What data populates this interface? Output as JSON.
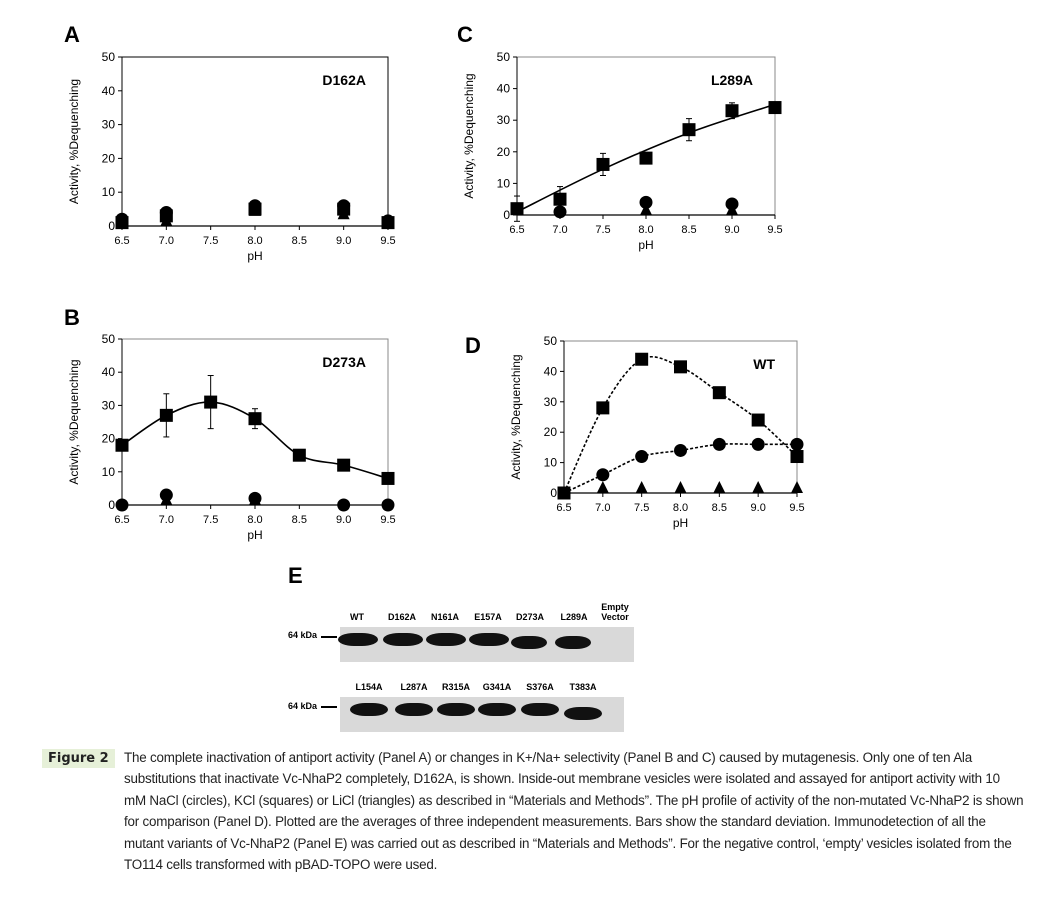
{
  "figure": {
    "label": "Figure 2",
    "caption": "The complete inactivation of antiport activity (Panel A) or changes in K+/Na+ selectivity (Panel B and C) caused by mutagenesis. Only one of ten Ala substitutions that inactivate Vc-NhaP2 completely, D162A, is shown.  Inside-out membrane vesicles were isolated and assayed for antiport activity with 10 mM NaCl (circles), KCl (squares) or LiCl (triangles) as described in “Materials and Methods”. The pH profile of activity of the non-mutated Vc-NhaP2 is shown for comparison (Panel D). Plotted are the averages of three independent measurements. Bars show the standard deviation. Immunodetection of all the mutant variants of Vc-NhaP2 (Panel E) was carried out as described in “Materials and Methods”. For the negative control, ‘empty’ vesicles isolated from the TO114 cells transformed with pBAD-TOPO were used."
  },
  "panel_letters": {
    "A": "A",
    "B": "B",
    "C": "C",
    "D": "D",
    "E": "E"
  },
  "chart_data": [
    {
      "panel": "A",
      "type": "scatter",
      "title": "D162A",
      "xlabel": "pH",
      "ylabel": "Activity, %Dequenching",
      "xlim": [
        6.5,
        9.5
      ],
      "ylim": [
        0,
        50
      ],
      "xticks": [
        "6.5",
        "7.0",
        "7.5",
        "8.0",
        "8.5",
        "9.0",
        "9.5"
      ],
      "yticks": [
        "0",
        "10",
        "20",
        "30",
        "40",
        "50"
      ],
      "series": [
        {
          "name": "NaCl",
          "marker": "circle",
          "line": "none",
          "x": [
            6.5,
            7.0,
            8.0,
            9.0,
            9.5
          ],
          "y": [
            2,
            4,
            6,
            6,
            1.5
          ]
        },
        {
          "name": "KCl",
          "marker": "square",
          "line": "none",
          "x": [
            6.5,
            7.0,
            8.0,
            9.0,
            9.5
          ],
          "y": [
            1,
            3,
            5,
            5,
            1
          ]
        },
        {
          "name": "LiCl",
          "marker": "triangle",
          "line": "none",
          "x": [
            7.0,
            8.0,
            9.0
          ],
          "y": [
            0,
            3,
            2
          ]
        }
      ]
    },
    {
      "panel": "B",
      "type": "line",
      "title": "D273A",
      "xlabel": "pH",
      "ylabel": "Activity, %Dequenching",
      "xlim": [
        6.5,
        9.5
      ],
      "ylim": [
        0,
        50
      ],
      "xticks": [
        "6.5",
        "7.0",
        "7.5",
        "8.0",
        "8.5",
        "9.0",
        "9.5"
      ],
      "yticks": [
        "0",
        "10",
        "20",
        "30",
        "40",
        "50"
      ],
      "series": [
        {
          "name": "KCl",
          "marker": "square",
          "line": "solid",
          "x": [
            6.5,
            7.0,
            7.5,
            8.0,
            8.5,
            9.0,
            9.5
          ],
          "y": [
            18,
            27,
            31,
            26,
            15,
            12,
            8
          ],
          "err": [
            0,
            6.5,
            8,
            3,
            0,
            0,
            0
          ]
        },
        {
          "name": "NaCl",
          "marker": "circle",
          "line": "none",
          "x": [
            6.5,
            7.0,
            8.0,
            9.0,
            9.5
          ],
          "y": [
            0,
            3,
            2,
            0,
            0
          ]
        },
        {
          "name": "LiCl",
          "marker": "triangle",
          "line": "none",
          "x": [
            7.0,
            8.0
          ],
          "y": [
            0,
            0
          ]
        }
      ]
    },
    {
      "panel": "C",
      "type": "line",
      "title": "L289A",
      "xlabel": "pH",
      "ylabel": "Activity, %Dequenching",
      "xlim": [
        6.5,
        9.5
      ],
      "ylim": [
        0,
        50
      ],
      "xticks": [
        "6.5",
        "7.0",
        "7.5",
        "8.0",
        "8.5",
        "9.0",
        "9.5"
      ],
      "yticks": [
        "0",
        "10",
        "20",
        "30",
        "40",
        "50"
      ],
      "series": [
        {
          "name": "KCl",
          "marker": "square",
          "line": "solid",
          "x": [
            6.5,
            7.0,
            7.5,
            8.0,
            8.5,
            9.0,
            9.5
          ],
          "y": [
            2,
            5,
            16,
            18,
            27,
            33,
            34
          ],
          "err": [
            4,
            4,
            3.5,
            0,
            3.5,
            2.5,
            0
          ],
          "fit": [
            [
              6.5,
              1
            ],
            [
              7.5,
              14.5
            ],
            [
              8.5,
              26
            ],
            [
              9.5,
              35
            ]
          ]
        },
        {
          "name": "NaCl",
          "marker": "circle",
          "line": "none",
          "x": [
            7.0,
            8.0,
            9.0
          ],
          "y": [
            1,
            4,
            3.5
          ]
        },
        {
          "name": "LiCl",
          "marker": "triangle",
          "line": "none",
          "x": [
            7.0,
            8.0,
            9.0
          ],
          "y": [
            0,
            0,
            0
          ]
        }
      ]
    },
    {
      "panel": "D",
      "type": "line",
      "title": "WT",
      "xlabel": "pH",
      "ylabel": "Activity, %Dequenching",
      "xlim": [
        6.5,
        9.5
      ],
      "ylim": [
        0,
        50
      ],
      "xticks": [
        "6.5",
        "7.0",
        "7.5",
        "8.0",
        "8.5",
        "9.0",
        "9.5"
      ],
      "yticks": [
        "0",
        "10",
        "20",
        "30",
        "40",
        "50"
      ],
      "series": [
        {
          "name": "KCl",
          "marker": "square",
          "line": "dashed",
          "x": [
            6.5,
            7.0,
            7.5,
            8.0,
            8.5,
            9.0,
            9.5
          ],
          "y": [
            0,
            28,
            44,
            41.5,
            33,
            24,
            12
          ]
        },
        {
          "name": "NaCl",
          "marker": "circle",
          "line": "dashed",
          "x": [
            6.5,
            7.0,
            7.5,
            8.0,
            8.5,
            9.0,
            9.5
          ],
          "y": [
            0,
            6,
            12,
            14,
            16,
            16,
            16
          ]
        },
        {
          "name": "LiCl",
          "marker": "triangle",
          "line": "none",
          "x": [
            7.0,
            7.5,
            8.0,
            8.5,
            9.0,
            9.5
          ],
          "y": [
            0,
            0,
            0,
            0,
            0,
            0
          ]
        }
      ]
    }
  ],
  "blot": {
    "marker_label": "64 kDa",
    "row1_lanes": [
      "WT",
      "D162A",
      "N161A",
      "E157A",
      "D273A",
      "L289A"
    ],
    "row1_empty": [
      "Empty",
      "Vector"
    ],
    "row2_lanes": [
      "L154A",
      "L287A",
      "R315A",
      "G341A",
      "S376A",
      "T383A"
    ]
  }
}
